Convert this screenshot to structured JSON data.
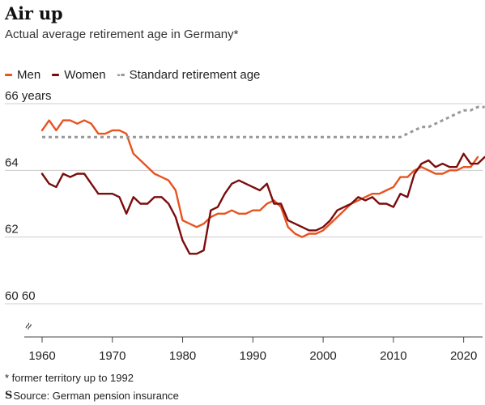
{
  "title": "Air up",
  "subtitle": "Actual average retirement age in Germany*",
  "legend": {
    "men": "Men",
    "women": "Women",
    "standard": "Standard retirement age"
  },
  "footnote": "* former territory up to 1992",
  "source": {
    "logo": "S",
    "text": "Source: German pension insurance"
  },
  "colors": {
    "men": "#e8531f",
    "women": "#7a0c0c",
    "standard": "#999999",
    "grid": "#cccccc",
    "axis": "#444444"
  },
  "chart_data": {
    "type": "line",
    "title": "Air up",
    "subtitle": "Actual average retirement age in Germany*",
    "ylim": [
      60,
      66
    ],
    "xlim": [
      1960,
      2022
    ],
    "y_ticks": [
      {
        "value": 66,
        "label": "66 years"
      },
      {
        "value": 64,
        "label": "64"
      },
      {
        "value": 62,
        "label": "62"
      },
      {
        "value": 60,
        "label": "60 60"
      }
    ],
    "x_ticks": [
      {
        "value": 1960,
        "label": "1960"
      },
      {
        "value": 1970,
        "label": "1970"
      },
      {
        "value": 1980,
        "label": "1980"
      },
      {
        "value": 1990,
        "label": "1990"
      },
      {
        "value": 2000,
        "label": "2000"
      },
      {
        "value": 2010,
        "label": "2010"
      },
      {
        "value": 2020,
        "label": "2020"
      }
    ],
    "grid": true,
    "legend_position": "top-left",
    "series": [
      {
        "name": "Men",
        "color": "#e8531f",
        "dash": false,
        "points": [
          [
            1960,
            65.2
          ],
          [
            1961,
            65.5
          ],
          [
            1962,
            65.2
          ],
          [
            1963,
            65.5
          ],
          [
            1964,
            65.5
          ],
          [
            1965,
            65.4
          ],
          [
            1966,
            65.5
          ],
          [
            1967,
            65.4
          ],
          [
            1968,
            65.1
          ],
          [
            1969,
            65.1
          ],
          [
            1970,
            65.2
          ],
          [
            1971,
            65.2
          ],
          [
            1972,
            65.1
          ],
          [
            1973,
            64.5
          ],
          [
            1974,
            64.3
          ],
          [
            1975,
            64.1
          ],
          [
            1976,
            63.9
          ],
          [
            1977,
            63.8
          ],
          [
            1978,
            63.7
          ],
          [
            1979,
            63.4
          ],
          [
            1980,
            62.5
          ],
          [
            1981,
            62.4
          ],
          [
            1982,
            62.3
          ],
          [
            1983,
            62.4
          ],
          [
            1984,
            62.6
          ],
          [
            1985,
            62.7
          ],
          [
            1986,
            62.7
          ],
          [
            1987,
            62.8
          ],
          [
            1988,
            62.7
          ],
          [
            1989,
            62.7
          ],
          [
            1990,
            62.8
          ],
          [
            1991,
            62.8
          ],
          [
            1992,
            63.0
          ],
          [
            1993,
            63.1
          ],
          [
            1994,
            62.9
          ],
          [
            1995,
            62.3
          ],
          [
            1996,
            62.1
          ],
          [
            1997,
            62.0
          ],
          [
            1998,
            62.1
          ],
          [
            1999,
            62.1
          ],
          [
            2000,
            62.2
          ],
          [
            2001,
            62.4
          ],
          [
            2002,
            62.6
          ],
          [
            2003,
            62.8
          ],
          [
            2004,
            63.0
          ],
          [
            2005,
            63.1
          ],
          [
            2006,
            63.2
          ],
          [
            2007,
            63.3
          ],
          [
            2008,
            63.3
          ],
          [
            2009,
            63.4
          ],
          [
            2010,
            63.5
          ],
          [
            2011,
            63.8
          ],
          [
            2012,
            63.8
          ],
          [
            2013,
            64.0
          ],
          [
            2014,
            64.1
          ],
          [
            2015,
            64.0
          ],
          [
            2016,
            63.9
          ],
          [
            2017,
            63.9
          ],
          [
            2018,
            64.0
          ],
          [
            2019,
            64.0
          ],
          [
            2020,
            64.1
          ],
          [
            2021,
            64.1
          ],
          [
            2022,
            64.4
          ]
        ]
      },
      {
        "name": "Women",
        "color": "#7a0c0c",
        "dash": false,
        "points": [
          [
            1960,
            63.9
          ],
          [
            1961,
            63.6
          ],
          [
            1962,
            63.5
          ],
          [
            1963,
            63.9
          ],
          [
            1964,
            63.8
          ],
          [
            1965,
            63.9
          ],
          [
            1966,
            63.9
          ],
          [
            1967,
            63.6
          ],
          [
            1968,
            63.3
          ],
          [
            1969,
            63.3
          ],
          [
            1970,
            63.3
          ],
          [
            1971,
            63.2
          ],
          [
            1972,
            62.7
          ],
          [
            1973,
            63.2
          ],
          [
            1974,
            63.0
          ],
          [
            1975,
            63.0
          ],
          [
            1976,
            63.2
          ],
          [
            1977,
            63.2
          ],
          [
            1978,
            63.0
          ],
          [
            1979,
            62.6
          ],
          [
            1980,
            61.9
          ],
          [
            1981,
            61.5
          ],
          [
            1982,
            61.5
          ],
          [
            1983,
            61.6
          ],
          [
            1984,
            62.8
          ],
          [
            1985,
            62.9
          ],
          [
            1986,
            63.3
          ],
          [
            1987,
            63.6
          ],
          [
            1988,
            63.7
          ],
          [
            1989,
            63.6
          ],
          [
            1990,
            63.5
          ],
          [
            1991,
            63.4
          ],
          [
            1992,
            63.6
          ],
          [
            1993,
            63.0
          ],
          [
            1994,
            63.0
          ],
          [
            1995,
            62.5
          ],
          [
            1996,
            62.4
          ],
          [
            1997,
            62.3
          ],
          [
            1998,
            62.2
          ],
          [
            1999,
            62.2
          ],
          [
            2000,
            62.3
          ],
          [
            2001,
            62.5
          ],
          [
            2002,
            62.8
          ],
          [
            2003,
            62.9
          ],
          [
            2004,
            63.0
          ],
          [
            2005,
            63.2
          ],
          [
            2006,
            63.1
          ],
          [
            2007,
            63.2
          ],
          [
            2008,
            63.0
          ],
          [
            2009,
            63.0
          ],
          [
            2010,
            62.9
          ],
          [
            2011,
            63.3
          ],
          [
            2012,
            63.2
          ],
          [
            2013,
            63.9
          ],
          [
            2014,
            64.2
          ],
          [
            2015,
            64.3
          ],
          [
            2016,
            64.1
          ],
          [
            2017,
            64.2
          ],
          [
            2018,
            64.1
          ],
          [
            2019,
            64.1
          ],
          [
            2020,
            64.5
          ],
          [
            2021,
            64.2
          ],
          [
            2022,
            64.2
          ],
          [
            2023,
            64.4
          ]
        ]
      },
      {
        "name": "Standard retirement age",
        "color": "#999999",
        "dash": true,
        "points": [
          [
            1960,
            65.0
          ],
          [
            2011,
            65.0
          ],
          [
            2012,
            65.1
          ],
          [
            2013,
            65.2
          ],
          [
            2014,
            65.3
          ],
          [
            2015,
            65.3
          ],
          [
            2016,
            65.4
          ],
          [
            2017,
            65.5
          ],
          [
            2018,
            65.6
          ],
          [
            2019,
            65.7
          ],
          [
            2020,
            65.8
          ],
          [
            2021,
            65.8
          ],
          [
            2022,
            65.9
          ],
          [
            2023,
            65.9
          ]
        ]
      }
    ]
  }
}
